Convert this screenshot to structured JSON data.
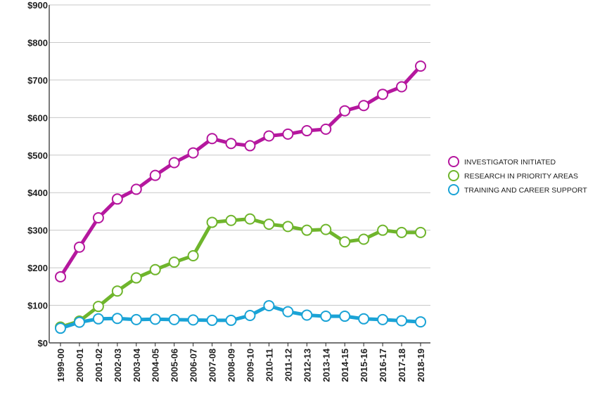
{
  "chart_data": {
    "type": "line",
    "title": "",
    "xlabel": "",
    "ylabel": "",
    "ylim": [
      0,
      900
    ],
    "y_ticks": [
      "$0",
      "$100",
      "$200",
      "$300",
      "$400",
      "$500",
      "$600",
      "$700",
      "$800",
      "$900"
    ],
    "grid": "horizontal",
    "legend_position": "right",
    "categories": [
      "1999-00",
      "2000-01",
      "2001-02",
      "2002-03",
      "2003-04",
      "2004-05",
      "2005-06",
      "2006-07",
      "2007-08",
      "2008-09",
      "2009-10",
      "2010-11",
      "2011-12",
      "2012-13",
      "2013-14",
      "2014-15",
      "2015-16",
      "2016-17",
      "2017-18",
      "2018-19"
    ],
    "series": [
      {
        "name": "INVESTIGATOR INITIATED",
        "color": "#b5179e",
        "values": [
          176,
          255,
          333,
          383,
          409,
          446,
          480,
          506,
          544,
          531,
          525,
          551,
          556,
          565,
          569,
          618,
          632,
          662,
          682,
          737
        ]
      },
      {
        "name": "RESEARCH IN PRIORITY AREAS",
        "color": "#6fb52c",
        "values": [
          42,
          58,
          97,
          138,
          173,
          195,
          215,
          232,
          321,
          326,
          330,
          316,
          310,
          300,
          302,
          269,
          276,
          300,
          294,
          294
        ]
      },
      {
        "name": "TRAINING AND CAREER SUPPORT",
        "color": "#1aa3d6",
        "values": [
          39,
          55,
          64,
          65,
          62,
          63,
          62,
          61,
          60,
          60,
          73,
          99,
          83,
          74,
          71,
          71,
          64,
          62,
          59,
          56
        ]
      }
    ]
  }
}
